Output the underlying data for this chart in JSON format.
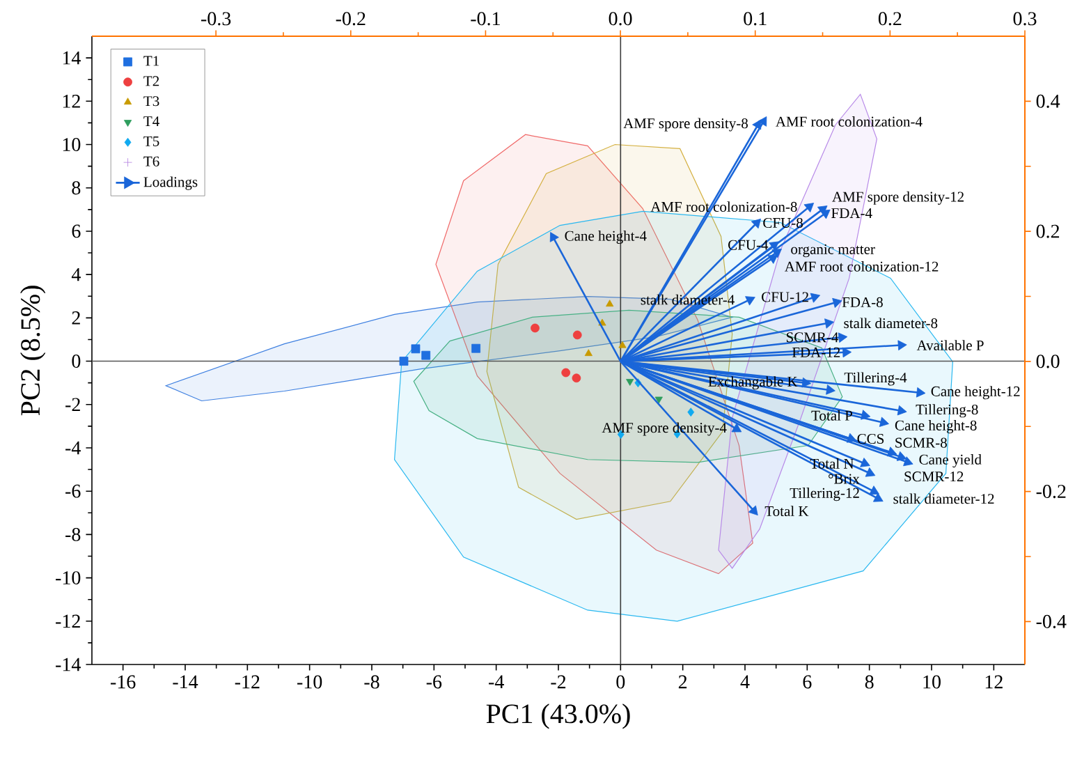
{
  "chart_data": {
    "type": "scatter",
    "xlabel": "PC1 (43.0%)",
    "ylabel": "PC2 (8.5%)",
    "xlim": [
      -17,
      13
    ],
    "ylim": [
      -14,
      15
    ],
    "xticks": [
      -16,
      -14,
      -12,
      -10,
      -8,
      -6,
      -4,
      -2,
      0,
      2,
      4,
      6,
      8,
      10,
      12
    ],
    "yticks": [
      -14,
      -12,
      -10,
      -8,
      -6,
      -4,
      -2,
      0,
      2,
      4,
      6,
      8,
      10,
      12,
      14
    ],
    "x2lim": [
      -0.392,
      0.3
    ],
    "x2ticks": [
      {
        "value": -0.3,
        "label": "-0.3"
      },
      {
        "value": -0.2,
        "label": "-0.2"
      },
      {
        "value": -0.1,
        "label": "-0.1"
      },
      {
        "value": 0,
        "label": "0.0"
      },
      0.1,
      0.2,
      0.3
    ],
    "y2lim": [
      -0.466,
      0.5
    ],
    "y2ticks": [
      {
        "value": -0.4,
        "label": "-0.4"
      },
      {
        "value": -0.3,
        "label": null
      },
      {
        "value": -0.2,
        "label": "-0.2"
      },
      {
        "value": -0.1,
        "label": null
      },
      {
        "value": 0,
        "label": "0.0"
      },
      {
        "value": 0.1,
        "label": null
      },
      0.2,
      {
        "value": 0.3,
        "label": null
      },
      0.4
    ],
    "legend": "top left",
    "ref_lines": [
      {
        "axis": "x",
        "value": 0,
        "color": "#3c3c3c"
      },
      {
        "axis": "y",
        "value": 0,
        "color": "#555555"
      }
    ],
    "series": [
      {
        "type": "area",
        "color": "#3d7fe0",
        "x": [
          -14.62,
          -10.81,
          -7.27,
          -4.61,
          -1.06,
          1.6,
          3.59,
          1.15,
          -1.95,
          -6.38,
          -10.81,
          -13.47
        ],
        "values": [
          -1.13,
          0.8,
          2.16,
          2.73,
          2.99,
          2.86,
          2.03,
          1.13,
          0.48,
          -0.35,
          -1.38,
          -1.83
        ]
      },
      {
        "type": "area",
        "color": "#f06a6a",
        "x": [
          -3.06,
          -1.06,
          0.71,
          2.48,
          3.81,
          4.25,
          3.15,
          1.15,
          -1.95,
          -4.61,
          -5.94,
          -5.05
        ],
        "values": [
          10.46,
          9.94,
          7.05,
          1.9,
          -3.89,
          -8.4,
          -9.81,
          -8.72,
          -5.18,
          -0.68,
          4.47,
          8.33
        ]
      },
      {
        "type": "area",
        "color": "#d4b040",
        "x": [
          -0.18,
          1.91,
          3.23,
          3.59,
          3.28,
          1.6,
          -1.42,
          -3.28,
          -4.3,
          -3.94,
          -2.39
        ],
        "values": [
          10.0,
          9.81,
          5.76,
          1.25,
          -3.25,
          -6.47,
          -7.3,
          -5.82,
          -0.48,
          4.47,
          8.66
        ]
      },
      {
        "type": "area",
        "color": "#4cb07a",
        "x": [
          -6.65,
          -5.49,
          -2.84,
          0.27,
          3.81,
          6.47,
          7.13,
          6.03,
          2.48,
          -1.06,
          -4.61,
          -6.16
        ],
        "values": [
          -0.93,
          0.93,
          2.03,
          2.35,
          2.03,
          0.61,
          -1.64,
          -3.89,
          -4.67,
          -4.54,
          -3.57,
          -2.28
        ]
      },
      {
        "type": "area",
        "color": "#2ab8f0",
        "x": [
          0.71,
          5.14,
          8.68,
          10.68,
          10.46,
          7.8,
          1.82,
          -1.06,
          -5.05,
          -7.27,
          -7.04,
          -4.61,
          -1.95
        ],
        "values": [
          6.92,
          6.4,
          3.83,
          -0.03,
          -5.18,
          -9.68,
          -12.0,
          -11.49,
          -9.04,
          -4.54,
          -0.03,
          4.15,
          6.27
        ]
      },
      {
        "type": "area",
        "color": "#b88ae8",
        "x": [
          7.71,
          8.24,
          7.35,
          5.8,
          4.47,
          3.59,
          3.15,
          3.59,
          5.14,
          6.91
        ],
        "values": [
          12.32,
          10.26,
          3.83,
          -2.61,
          -7.75,
          -9.56,
          -8.72,
          -2.61,
          5.12,
          10.91
        ]
      },
      {
        "name": "T1",
        "marker": "square",
        "color": "#1f6fe0",
        "x": [
          -6.97,
          -6.59,
          -6.26,
          -4.65
        ],
        "values": [
          0.0,
          0.57,
          0.27,
          0.59
        ]
      },
      {
        "name": "T2",
        "marker": "circle",
        "color": "#ee4040",
        "x": [
          -2.75,
          -1.39,
          -1.76,
          -1.42
        ],
        "values": [
          1.53,
          1.21,
          -0.53,
          -0.78
        ]
      },
      {
        "name": "T3",
        "marker": "triangle",
        "color": "#c89a00",
        "x": [
          -0.35,
          -0.59,
          -1.03,
          0.06
        ],
        "values": [
          2.63,
          1.75,
          0.35,
          0.72
        ]
      },
      {
        "name": "T4",
        "marker": "triangle-down",
        "color": "#2e9e5e",
        "x": [
          0.3,
          0.8,
          1.23
        ],
        "values": [
          -0.93,
          null,
          -1.75
        ]
      },
      {
        "name": "T5",
        "marker": "diamond",
        "color": "#10aaf0",
        "x": [
          0.01,
          0.56,
          1.82,
          2.26
        ],
        "values": [
          -3.38,
          -1.0,
          -3.36,
          -2.35
        ]
      },
      {
        "name": "T6",
        "marker": "cross",
        "color": "#b07ee0"
      },
      {
        "name": "Loadings",
        "marker": "triangle",
        "axis": "y2",
        "color": "#1a66d9",
        "x": [
          4.6,
          4.42,
          4.38,
          4.94,
          6.07,
          6.5,
          6.59,
          4.9,
          5.03,
          4.16,
          6.24,
          6.94,
          6.68,
          7.11,
          9.02,
          7.24,
          5.94,
          6.72,
          9.62,
          7.85,
          9.02,
          8.45,
          3.73,
          7.41,
          8.71,
          7.85,
          9.02,
          9.23,
          8.02,
          8.15,
          8.28,
          4.29,
          -2.17
        ],
        "values": [
          0.369,
          0.364,
          0.213,
          0.179,
          0.238,
          0.234,
          0.228,
          0.159,
          0.168,
          0.095,
          0.099,
          0.091,
          0.059,
          0.037,
          0.025,
          0.014,
          -0.033,
          -0.044,
          -0.048,
          -0.083,
          -0.076,
          -0.094,
          -0.104,
          -0.119,
          -0.14,
          -0.157,
          -0.147,
          -0.155,
          -0.172,
          -0.2,
          -0.211,
          -0.23,
          0.191
        ],
        "value_labels": [
          "AMF root colonization-4",
          "AMF spore density-8",
          "CFU-8",
          "CFU-4",
          "AMF root colonization-8",
          "AMF spore density-12",
          "FDA-4",
          "AMF root colonization-12",
          "organic matter",
          "stalk diameter-4",
          "CFU-12",
          "FDA-8",
          "stalk diameter-8",
          "SCMR-4",
          "Available  P",
          "FDA-12",
          "Exchangable K",
          "Tillering-4",
          "Cane height-12",
          "Total P",
          "Tillering-8",
          "Cane height-8",
          "AMF spore density-4",
          "CCS",
          "SCMR-8",
          "Total N",
          "SCMR-12",
          "Cane yield",
          "°Brix",
          "Tillering-12",
          "stalk diameter-12",
          "Total K",
          "Cane height-4"
        ]
      }
    ]
  }
}
